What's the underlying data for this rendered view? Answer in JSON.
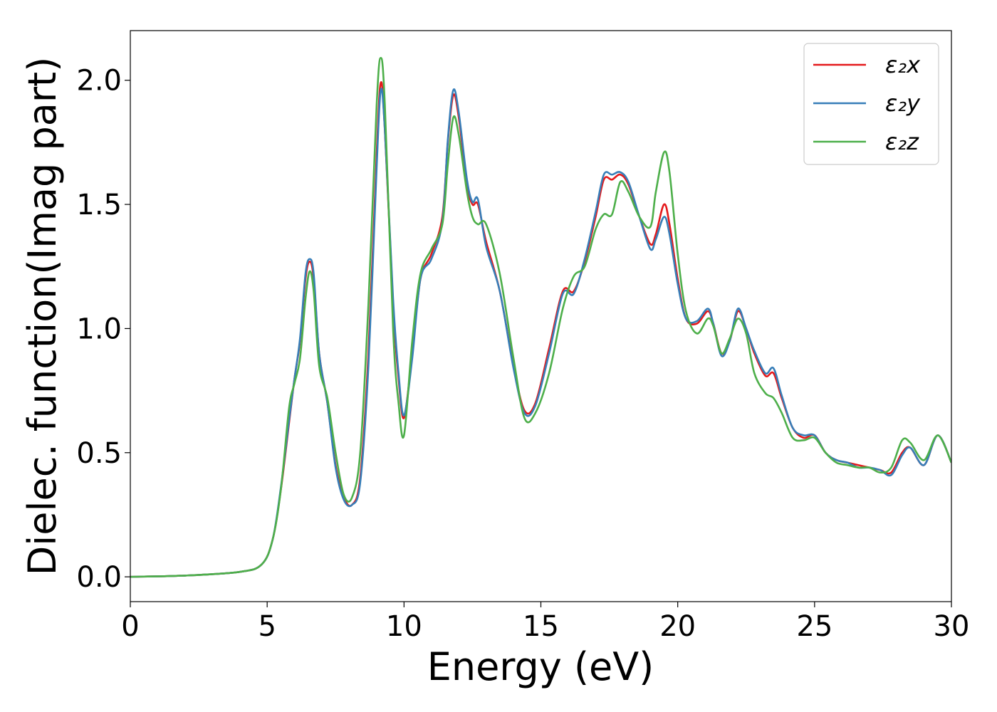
{
  "chart_data": {
    "type": "line",
    "title": "",
    "xlabel": "Energy (eV)",
    "ylabel": "Dielec. function(Imag part)",
    "xlim": [
      0,
      30
    ],
    "ylim": [
      -0.1,
      2.2
    ],
    "xticks": [
      0,
      5,
      10,
      15,
      20,
      25,
      30
    ],
    "xtick_labels": [
      "0",
      "5",
      "10",
      "15",
      "20",
      "25",
      "30"
    ],
    "yticks": [
      0.0,
      0.5,
      1.0,
      1.5,
      2.0
    ],
    "ytick_labels": [
      "0.0",
      "0.5",
      "1.0",
      "1.5",
      "2.0"
    ],
    "grid": false,
    "legend_position": "top-right",
    "series": [
      {
        "name": "ε₂x",
        "color": "#e41a1c",
        "points": [
          [
            0,
            0
          ],
          [
            2,
            0.005
          ],
          [
            4,
            0.02
          ],
          [
            4.8,
            0.05
          ],
          [
            5.2,
            0.15
          ],
          [
            5.5,
            0.35
          ],
          [
            5.8,
            0.62
          ],
          [
            6.0,
            0.8
          ],
          [
            6.2,
            0.95
          ],
          [
            6.4,
            1.2
          ],
          [
            6.55,
            1.27
          ],
          [
            6.7,
            1.2
          ],
          [
            6.9,
            0.9
          ],
          [
            7.2,
            0.7
          ],
          [
            7.5,
            0.45
          ],
          [
            7.8,
            0.32
          ],
          [
            8.1,
            0.29
          ],
          [
            8.4,
            0.4
          ],
          [
            8.7,
            0.9
          ],
          [
            9.0,
            1.7
          ],
          [
            9.15,
            1.99
          ],
          [
            9.3,
            1.8
          ],
          [
            9.6,
            1.1
          ],
          [
            9.8,
            0.8
          ],
          [
            10.0,
            0.64
          ],
          [
            10.3,
            0.9
          ],
          [
            10.6,
            1.2
          ],
          [
            11.0,
            1.3
          ],
          [
            11.4,
            1.45
          ],
          [
            11.6,
            1.75
          ],
          [
            11.8,
            1.94
          ],
          [
            12.0,
            1.85
          ],
          [
            12.3,
            1.58
          ],
          [
            12.5,
            1.5
          ],
          [
            12.7,
            1.5
          ],
          [
            13.0,
            1.35
          ],
          [
            13.5,
            1.15
          ],
          [
            14.0,
            0.85
          ],
          [
            14.4,
            0.67
          ],
          [
            14.8,
            0.7
          ],
          [
            15.3,
            0.92
          ],
          [
            15.8,
            1.15
          ],
          [
            16.2,
            1.15
          ],
          [
            16.6,
            1.27
          ],
          [
            17.0,
            1.45
          ],
          [
            17.3,
            1.6
          ],
          [
            17.6,
            1.6
          ],
          [
            17.9,
            1.62
          ],
          [
            18.2,
            1.58
          ],
          [
            18.6,
            1.45
          ],
          [
            19.0,
            1.34
          ],
          [
            19.2,
            1.38
          ],
          [
            19.5,
            1.5
          ],
          [
            19.7,
            1.42
          ],
          [
            20.0,
            1.2
          ],
          [
            20.3,
            1.04
          ],
          [
            20.7,
            1.02
          ],
          [
            21.1,
            1.07
          ],
          [
            21.3,
            1.02
          ],
          [
            21.6,
            0.9
          ],
          [
            21.9,
            0.95
          ],
          [
            22.2,
            1.07
          ],
          [
            22.5,
            1.0
          ],
          [
            22.8,
            0.9
          ],
          [
            23.2,
            0.81
          ],
          [
            23.5,
            0.82
          ],
          [
            23.8,
            0.72
          ],
          [
            24.2,
            0.6
          ],
          [
            24.6,
            0.56
          ],
          [
            25.0,
            0.57
          ],
          [
            25.4,
            0.5
          ],
          [
            25.8,
            0.47
          ],
          [
            26.2,
            0.46
          ],
          [
            26.6,
            0.45
          ],
          [
            27.0,
            0.44
          ],
          [
            27.4,
            0.43
          ],
          [
            27.8,
            0.42
          ],
          [
            28.2,
            0.5
          ],
          [
            28.5,
            0.52
          ],
          [
            29.0,
            0.45
          ],
          [
            29.5,
            0.57
          ],
          [
            30.0,
            0.46
          ]
        ]
      },
      {
        "name": "ε₂y",
        "color": "#377eb8",
        "points": [
          [
            0,
            0
          ],
          [
            2,
            0.005
          ],
          [
            4,
            0.02
          ],
          [
            4.8,
            0.05
          ],
          [
            5.2,
            0.15
          ],
          [
            5.5,
            0.36
          ],
          [
            5.8,
            0.63
          ],
          [
            6.0,
            0.8
          ],
          [
            6.2,
            0.96
          ],
          [
            6.4,
            1.22
          ],
          [
            6.55,
            1.28
          ],
          [
            6.7,
            1.22
          ],
          [
            6.9,
            0.9
          ],
          [
            7.2,
            0.7
          ],
          [
            7.5,
            0.44
          ],
          [
            7.8,
            0.31
          ],
          [
            8.1,
            0.29
          ],
          [
            8.4,
            0.38
          ],
          [
            8.7,
            0.85
          ],
          [
            9.0,
            1.65
          ],
          [
            9.15,
            1.96
          ],
          [
            9.3,
            1.8
          ],
          [
            9.6,
            1.12
          ],
          [
            9.8,
            0.82
          ],
          [
            10.0,
            0.65
          ],
          [
            10.3,
            0.88
          ],
          [
            10.6,
            1.2
          ],
          [
            11.0,
            1.28
          ],
          [
            11.4,
            1.43
          ],
          [
            11.6,
            1.76
          ],
          [
            11.8,
            1.96
          ],
          [
            12.0,
            1.87
          ],
          [
            12.3,
            1.6
          ],
          [
            12.5,
            1.51
          ],
          [
            12.7,
            1.52
          ],
          [
            13.0,
            1.33
          ],
          [
            13.5,
            1.15
          ],
          [
            14.0,
            0.84
          ],
          [
            14.4,
            0.66
          ],
          [
            14.8,
            0.69
          ],
          [
            15.3,
            0.9
          ],
          [
            15.8,
            1.14
          ],
          [
            16.2,
            1.14
          ],
          [
            16.6,
            1.28
          ],
          [
            17.0,
            1.47
          ],
          [
            17.3,
            1.62
          ],
          [
            17.6,
            1.62
          ],
          [
            17.9,
            1.63
          ],
          [
            18.2,
            1.59
          ],
          [
            18.6,
            1.45
          ],
          [
            19.0,
            1.32
          ],
          [
            19.2,
            1.36
          ],
          [
            19.5,
            1.45
          ],
          [
            19.7,
            1.38
          ],
          [
            20.0,
            1.18
          ],
          [
            20.3,
            1.04
          ],
          [
            20.7,
            1.03
          ],
          [
            21.1,
            1.08
          ],
          [
            21.3,
            1.02
          ],
          [
            21.6,
            0.89
          ],
          [
            21.9,
            0.95
          ],
          [
            22.2,
            1.08
          ],
          [
            22.5,
            1.0
          ],
          [
            22.8,
            0.91
          ],
          [
            23.2,
            0.82
          ],
          [
            23.5,
            0.84
          ],
          [
            23.8,
            0.73
          ],
          [
            24.2,
            0.6
          ],
          [
            24.6,
            0.57
          ],
          [
            25.0,
            0.57
          ],
          [
            25.4,
            0.5
          ],
          [
            25.8,
            0.47
          ],
          [
            26.2,
            0.46
          ],
          [
            26.6,
            0.44
          ],
          [
            27.0,
            0.44
          ],
          [
            27.4,
            0.43
          ],
          [
            27.8,
            0.41
          ],
          [
            28.2,
            0.49
          ],
          [
            28.5,
            0.52
          ],
          [
            29.0,
            0.45
          ],
          [
            29.5,
            0.57
          ],
          [
            30.0,
            0.46
          ]
        ]
      },
      {
        "name": "ε₂z",
        "color": "#4daf4a",
        "points": [
          [
            0,
            0
          ],
          [
            2,
            0.005
          ],
          [
            4,
            0.02
          ],
          [
            4.8,
            0.05
          ],
          [
            5.2,
            0.15
          ],
          [
            5.5,
            0.35
          ],
          [
            5.8,
            0.68
          ],
          [
            6.0,
            0.78
          ],
          [
            6.2,
            0.88
          ],
          [
            6.4,
            1.12
          ],
          [
            6.55,
            1.23
          ],
          [
            6.7,
            1.15
          ],
          [
            6.9,
            0.85
          ],
          [
            7.2,
            0.72
          ],
          [
            7.5,
            0.5
          ],
          [
            7.8,
            0.33
          ],
          [
            8.1,
            0.32
          ],
          [
            8.4,
            0.5
          ],
          [
            8.7,
            1.1
          ],
          [
            9.0,
            1.9
          ],
          [
            9.15,
            2.09
          ],
          [
            9.3,
            1.9
          ],
          [
            9.6,
            1.0
          ],
          [
            9.8,
            0.7
          ],
          [
            10.0,
            0.57
          ],
          [
            10.3,
            0.95
          ],
          [
            10.6,
            1.22
          ],
          [
            11.0,
            1.32
          ],
          [
            11.4,
            1.42
          ],
          [
            11.6,
            1.66
          ],
          [
            11.8,
            1.85
          ],
          [
            12.0,
            1.78
          ],
          [
            12.3,
            1.55
          ],
          [
            12.5,
            1.45
          ],
          [
            12.7,
            1.42
          ],
          [
            13.0,
            1.42
          ],
          [
            13.5,
            1.22
          ],
          [
            14.0,
            0.88
          ],
          [
            14.4,
            0.64
          ],
          [
            14.8,
            0.66
          ],
          [
            15.3,
            0.82
          ],
          [
            15.8,
            1.08
          ],
          [
            16.2,
            1.21
          ],
          [
            16.6,
            1.25
          ],
          [
            17.0,
            1.4
          ],
          [
            17.3,
            1.46
          ],
          [
            17.6,
            1.46
          ],
          [
            17.9,
            1.59
          ],
          [
            18.2,
            1.55
          ],
          [
            18.6,
            1.45
          ],
          [
            19.0,
            1.41
          ],
          [
            19.2,
            1.55
          ],
          [
            19.5,
            1.71
          ],
          [
            19.7,
            1.63
          ],
          [
            20.0,
            1.3
          ],
          [
            20.3,
            1.07
          ],
          [
            20.7,
            0.98
          ],
          [
            21.1,
            1.04
          ],
          [
            21.3,
            1.01
          ],
          [
            21.6,
            0.9
          ],
          [
            21.9,
            0.96
          ],
          [
            22.2,
            1.04
          ],
          [
            22.5,
            0.98
          ],
          [
            22.8,
            0.82
          ],
          [
            23.2,
            0.74
          ],
          [
            23.5,
            0.72
          ],
          [
            23.8,
            0.66
          ],
          [
            24.2,
            0.56
          ],
          [
            24.6,
            0.55
          ],
          [
            25.0,
            0.56
          ],
          [
            25.4,
            0.5
          ],
          [
            25.8,
            0.46
          ],
          [
            26.2,
            0.45
          ],
          [
            26.6,
            0.44
          ],
          [
            27.0,
            0.44
          ],
          [
            27.4,
            0.42
          ],
          [
            27.8,
            0.44
          ],
          [
            28.2,
            0.55
          ],
          [
            28.5,
            0.54
          ],
          [
            29.0,
            0.47
          ],
          [
            29.5,
            0.57
          ],
          [
            30.0,
            0.46
          ]
        ]
      }
    ]
  }
}
